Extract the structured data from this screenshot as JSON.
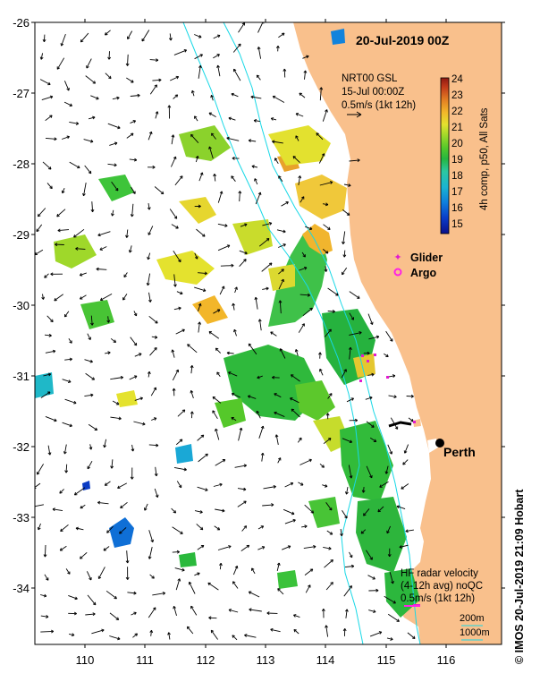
{
  "map": {
    "title": "20-Jul-2019 00Z",
    "lat_ticks": [
      "-26",
      "-27",
      "-28",
      "-29",
      "-30",
      "-31",
      "-32",
      "-33",
      "-34"
    ],
    "lon_ticks": [
      "110",
      "111",
      "112",
      "113",
      "114",
      "115",
      "116"
    ],
    "lon_range": [
      109.25,
      117.0
    ],
    "lat_range": [
      -34.8,
      -26.0
    ]
  },
  "sst_info": {
    "line1": "NRT00 GSL",
    "line2": "15-Jul 00:00Z",
    "line3": "0.5m/s (1kt 12h)"
  },
  "colorbar": {
    "ticks": [
      "24",
      "23",
      "22",
      "21",
      "20",
      "19",
      "18",
      "17",
      "16",
      "15"
    ],
    "label": "4h comp, p50, All Sats",
    "colors": [
      "#0a0f8a",
      "#0a3cc8",
      "#0f7fdc",
      "#1bb5d2",
      "#2cc7a0",
      "#25b640",
      "#55c82a",
      "#9fd82a",
      "#e4e22e",
      "#f2b62a",
      "#e27d23",
      "#c23c1a",
      "#8f1912"
    ]
  },
  "legend": {
    "glider": "Glider",
    "argo": "Argo",
    "glider_color": "#e21ad0",
    "argo_color": "#ff21e6"
  },
  "city": {
    "name": "Perth"
  },
  "hf_radar": {
    "line1": "HF radar velocity",
    "line2": "(4-12h avg) noQC",
    "line3": "0.5m/s (1kt 12h)"
  },
  "isobaths": {
    "label_200": "200m",
    "label_1000": "1000m",
    "color": "#18d8e6"
  },
  "credit": "© IMOS 20-Jul-2019 21:09 Hobart",
  "colors": {
    "land": "#f9c08c",
    "ocean": "#ffffff"
  }
}
